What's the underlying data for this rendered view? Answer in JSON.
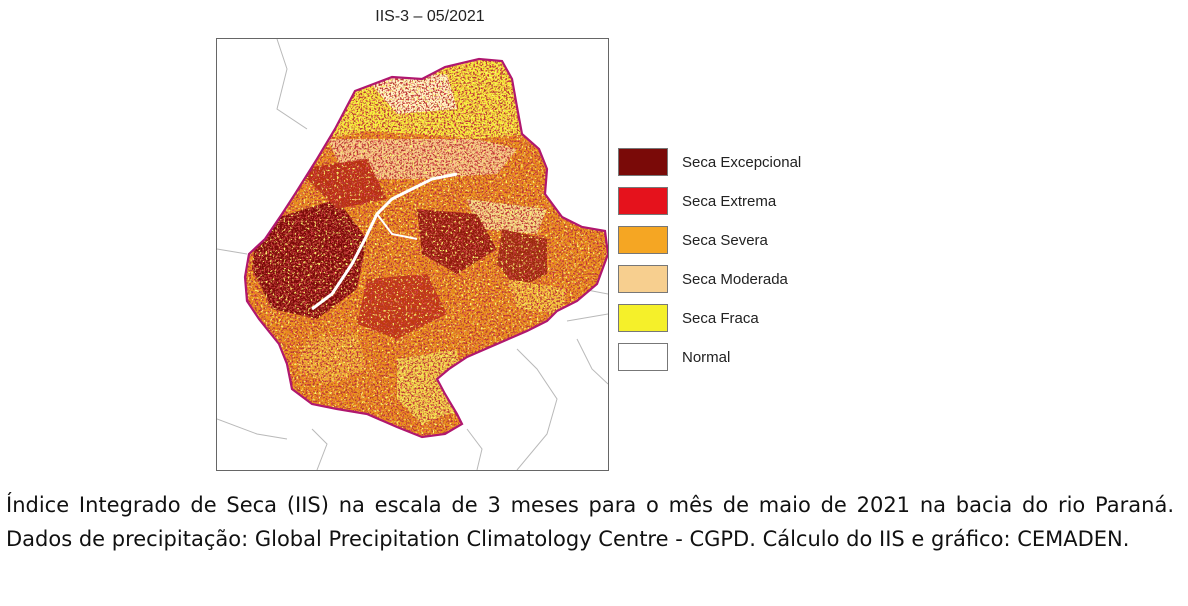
{
  "map": {
    "title": "IIS-3 – 05/2021",
    "boundary_color": "#b0176f"
  },
  "legend": {
    "items": [
      {
        "label": "Seca Excepcional",
        "color": "#7a0a08"
      },
      {
        "label": "Seca Extrema",
        "color": "#e5121c"
      },
      {
        "label": "Seca Severa",
        "color": "#f5a623"
      },
      {
        "label": "Seca Moderada",
        "color": "#f7cf8f"
      },
      {
        "label": "Seca Fraca",
        "color": "#f5f02a"
      },
      {
        "label": "Normal",
        "color": "#ffffff"
      }
    ]
  },
  "caption": {
    "text": "Índice Integrado de Seca (IIS) na escala de 3 meses para o mês de maio de 2021 na bacia do rio Paraná. Dados de precipitação: Global Precipitation Climatology Centre - CGPD. Cálculo do IIS e gráfico: CEMADEN."
  }
}
